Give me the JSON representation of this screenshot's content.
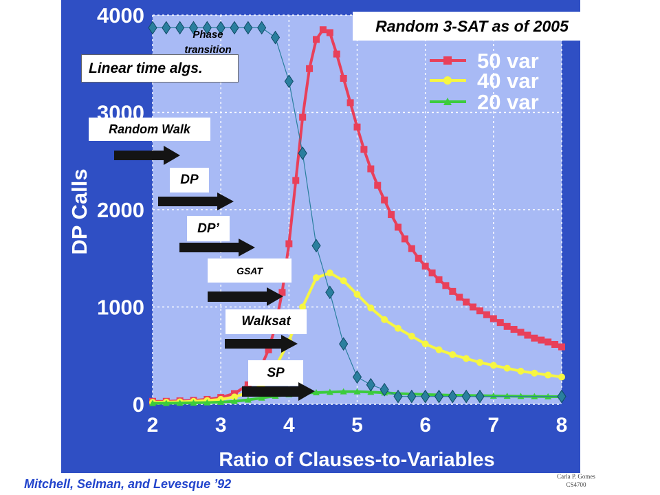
{
  "slide": {
    "title": "Random 3-SAT as of 2005",
    "phase_label_line1": "Phase",
    "phase_label_line2": "transition",
    "linear_label": "Linear time algs.",
    "algorithms": [
      "Random Walk",
      "DP",
      "DP’",
      "GSAT",
      "Walksat",
      "SP"
    ],
    "citation": "Mitchell, Selman, and  Levesque ’92",
    "footer_line1": "Carla P. Gomes",
    "footer_line2": "CS4700"
  },
  "colors": {
    "slide_background": "#2f4fc4",
    "plot_background": "#a8baf5",
    "var50": "#e8405a",
    "var40": "#f6f642",
    "var20": "#3ccc3c",
    "prob_sat": "#2a7f9e",
    "citation_text": "#2244cc",
    "axis_text": "#ffffff"
  },
  "chart_data": {
    "type": "line",
    "title": "",
    "xlabel": "Ratio of Clauses-to-Variables",
    "ylabel": "DP Calls",
    "xlim": [
      2,
      8
    ],
    "ylim": [
      0,
      4000
    ],
    "x_ticks": [
      "2",
      "3",
      "4",
      "5",
      "6",
      "7",
      "8"
    ],
    "y_ticks": [
      "0",
      "1000",
      "2000",
      "3000",
      "4000"
    ],
    "legend": "top-right",
    "legend_labels": [
      "50 var",
      "40 var",
      "20 var"
    ],
    "series": [
      {
        "name": "50 var",
        "marker": "square",
        "x": [
          2.0,
          2.2,
          2.4,
          2.6,
          2.8,
          3.0,
          3.2,
          3.4,
          3.5,
          3.6,
          3.7,
          3.8,
          3.9,
          4.0,
          4.1,
          4.2,
          4.3,
          4.4,
          4.5,
          4.6,
          4.7,
          4.8,
          4.9,
          5.0,
          5.1,
          5.2,
          5.3,
          5.4,
          5.5,
          5.6,
          5.7,
          5.8,
          5.9,
          6.0,
          6.1,
          6.2,
          6.3,
          6.4,
          6.5,
          6.6,
          6.7,
          6.8,
          6.9,
          7.0,
          7.1,
          7.2,
          7.3,
          7.4,
          7.5,
          7.6,
          7.7,
          7.8,
          7.9,
          8.0
        ],
        "y": [
          30,
          30,
          35,
          40,
          50,
          70,
          110,
          200,
          280,
          400,
          560,
          800,
          1150,
          1650,
          2300,
          2950,
          3450,
          3750,
          3850,
          3820,
          3600,
          3350,
          3100,
          2850,
          2620,
          2420,
          2250,
          2100,
          1950,
          1820,
          1700,
          1600,
          1500,
          1420,
          1350,
          1280,
          1220,
          1160,
          1100,
          1050,
          1000,
          960,
          920,
          880,
          840,
          800,
          770,
          740,
          710,
          680,
          660,
          640,
          615,
          590
        ]
      },
      {
        "name": "40 var",
        "marker": "circle",
        "x": [
          2.0,
          2.2,
          2.4,
          2.6,
          2.8,
          3.0,
          3.2,
          3.4,
          3.6,
          3.8,
          4.0,
          4.2,
          4.4,
          4.6,
          4.8,
          5.0,
          5.2,
          5.4,
          5.6,
          5.8,
          6.0,
          6.2,
          6.4,
          6.6,
          6.8,
          7.0,
          7.2,
          7.4,
          7.6,
          7.8,
          8.0
        ],
        "y": [
          20,
          22,
          25,
          30,
          38,
          50,
          75,
          120,
          200,
          380,
          650,
          1000,
          1300,
          1350,
          1270,
          1130,
          990,
          870,
          780,
          700,
          620,
          560,
          510,
          470,
          430,
          400,
          370,
          340,
          320,
          300,
          280
        ]
      },
      {
        "name": "20 var",
        "marker": "triangle",
        "x": [
          2.0,
          2.2,
          2.4,
          2.6,
          2.8,
          3.0,
          3.2,
          3.4,
          3.6,
          3.8,
          4.0,
          4.2,
          4.4,
          4.6,
          4.8,
          5.0,
          5.2,
          5.4,
          5.6,
          5.8,
          6.0,
          6.2,
          6.4,
          6.6,
          6.8,
          7.0,
          7.2,
          7.4,
          7.6,
          7.8,
          8.0
        ],
        "y": [
          10,
          11,
          12,
          14,
          17,
          22,
          30,
          45,
          65,
          85,
          100,
          115,
          120,
          125,
          130,
          130,
          125,
          118,
          110,
          105,
          100,
          96,
          92,
          90,
          88,
          86,
          84,
          82,
          80,
          79,
          78
        ]
      },
      {
        "name": "",
        "marker": "diamond",
        "x": [
          2.0,
          2.2,
          2.4,
          2.6,
          2.8,
          3.0,
          3.2,
          3.4,
          3.6,
          3.8,
          4.0,
          4.2,
          4.4,
          4.6,
          4.8,
          5.0,
          5.2,
          5.4,
          5.6,
          5.8,
          6.0,
          6.2,
          6.4,
          6.6,
          6.8,
          8.0
        ],
        "y": [
          3870,
          3870,
          3870,
          3870,
          3870,
          3870,
          3870,
          3870,
          3870,
          3770,
          3320,
          2580,
          1630,
          1150,
          620,
          280,
          200,
          150,
          80,
          80,
          80,
          80,
          80,
          80,
          80,
          80
        ]
      }
    ]
  }
}
